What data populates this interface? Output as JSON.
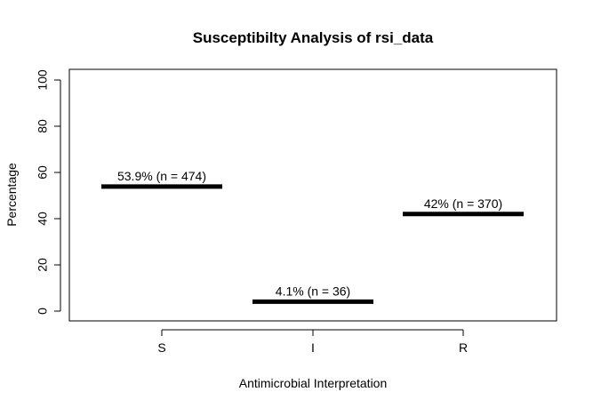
{
  "chart_data": {
    "type": "bar",
    "title": "Susceptibilty Analysis of rsi_data",
    "xlabel": "Antimicrobial Interpretation",
    "ylabel": "Percentage",
    "categories": [
      "S",
      "I",
      "R"
    ],
    "values": [
      53.9,
      4.1,
      42
    ],
    "labels": [
      "53.9% (n = 474)",
      "4.1% (n = 36)",
      "42% (n = 370)"
    ],
    "ylim": [
      0,
      100
    ],
    "yticks": [
      "0",
      "20",
      "40",
      "60",
      "80",
      "100"
    ],
    "grid": false,
    "legend": "none",
    "mark_color": "#000000"
  }
}
